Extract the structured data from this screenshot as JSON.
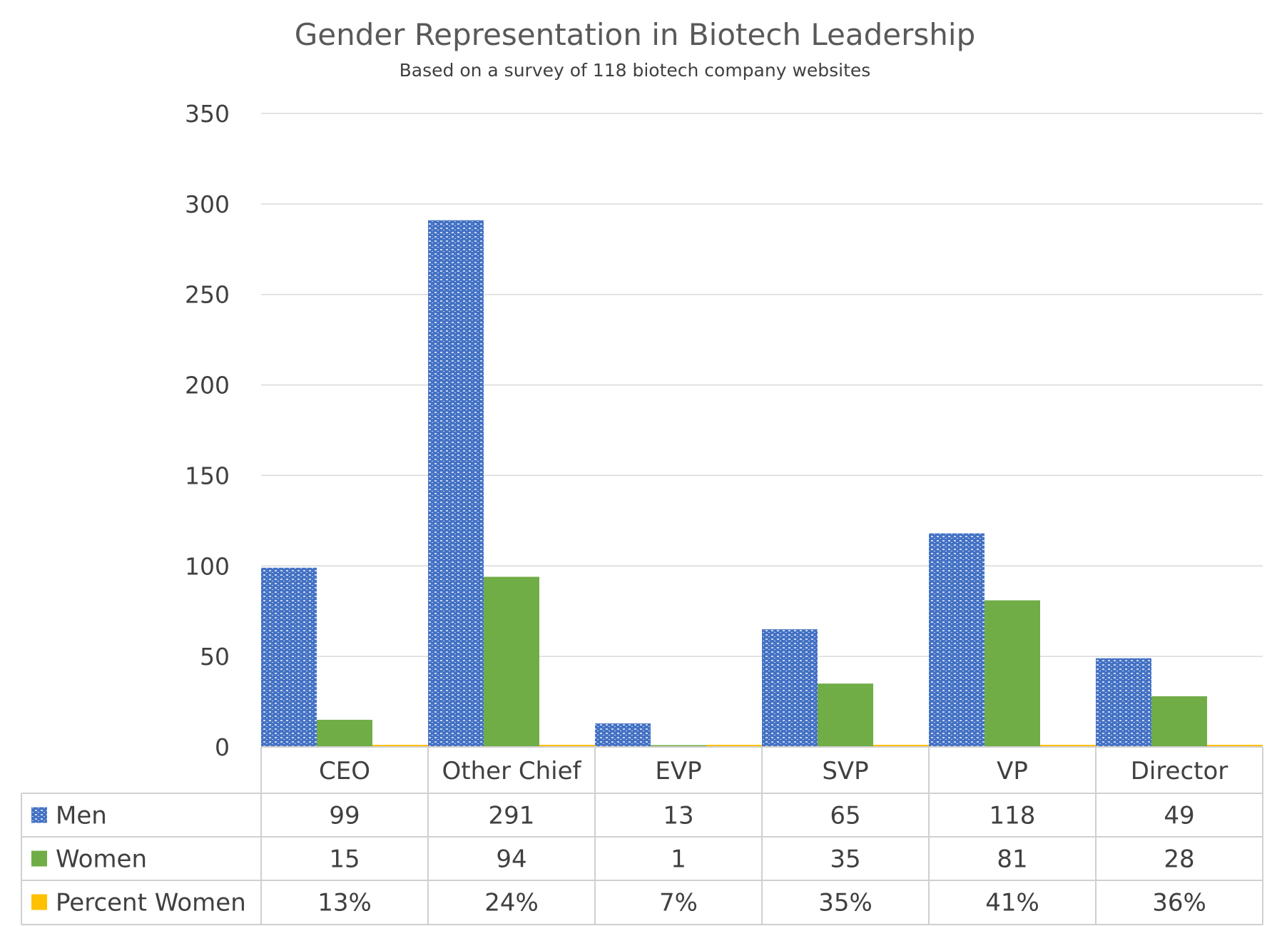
{
  "colors": {
    "men": "#4472c4",
    "women": "#70ad47",
    "percent": "#ffc000"
  },
  "chart_data": {
    "type": "bar",
    "title": "Gender Representation in Biotech Leadership",
    "subtitle": "Based on a survey of 118 biotech company websites",
    "categories": [
      "CEO",
      "Other Chief",
      "EVP",
      "SVP",
      "VP",
      "Director"
    ],
    "ylim": [
      0,
      350
    ],
    "yticks": [
      "0",
      "50",
      "100",
      "150",
      "200",
      "250",
      "300",
      "350"
    ],
    "grid": true,
    "legend": "data-table",
    "series": [
      {
        "name": "Men",
        "values": [
          99,
          291,
          13,
          65,
          118,
          49
        ],
        "labels": [
          "99",
          "291",
          "13",
          "65",
          "118",
          "49"
        ],
        "pattern": "hatched"
      },
      {
        "name": "Women",
        "values": [
          15,
          94,
          1,
          35,
          81,
          28
        ],
        "labels": [
          "15",
          "94",
          "1",
          "35",
          "81",
          "28"
        ]
      },
      {
        "name": "Percent Women",
        "values": [
          0.13,
          0.24,
          0.07,
          0.35,
          0.41,
          0.36
        ],
        "labels": [
          "13%",
          "24%",
          "7%",
          "35%",
          "41%",
          "36%"
        ]
      }
    ]
  }
}
